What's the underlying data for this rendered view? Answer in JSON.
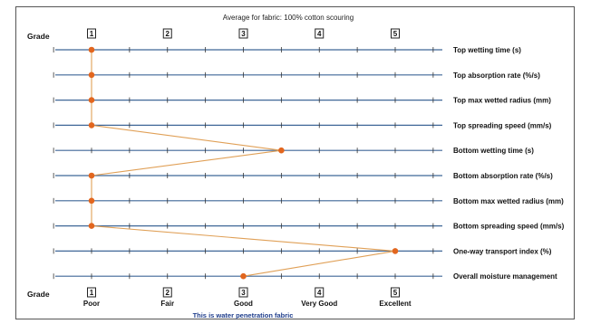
{
  "chart_data": {
    "type": "line",
    "title": "Average for fabric: 100% cotton scouring",
    "grade_label": "Grade",
    "grades": [
      "1",
      "2",
      "3",
      "4",
      "5"
    ],
    "ratings": [
      "Poor",
      "Fair",
      "Good",
      "Very Good",
      "Excellent"
    ],
    "xlim": [
      1,
      5
    ],
    "rows": [
      {
        "label": "Top wetting time (s)",
        "value": 1.0
      },
      {
        "label": "Top absorption rate (%/s)",
        "value": 1.0
      },
      {
        "label": "Top max wetted radius (mm)",
        "value": 1.0
      },
      {
        "label": "Top spreading speed (mm/s)",
        "value": 1.0
      },
      {
        "label": "Bottom wetting time (s)",
        "value": 3.5
      },
      {
        "label": "Bottom absorption rate (%/s)",
        "value": 1.0
      },
      {
        "label": "Bottom max wetted radius (mm)",
        "value": 1.0
      },
      {
        "label": "Bottom spreading speed (mm/s)",
        "value": 1.0
      },
      {
        "label": "One-way transport index (%)",
        "value": 5.0
      },
      {
        "label": "Overall moisture management",
        "value": 3.0
      }
    ],
    "note": "This is water penetration fabric",
    "colors": {
      "axis": "#3f6797",
      "marker": "#e2661e",
      "connector": "#e0a057",
      "note": "#1f3e8c"
    }
  }
}
